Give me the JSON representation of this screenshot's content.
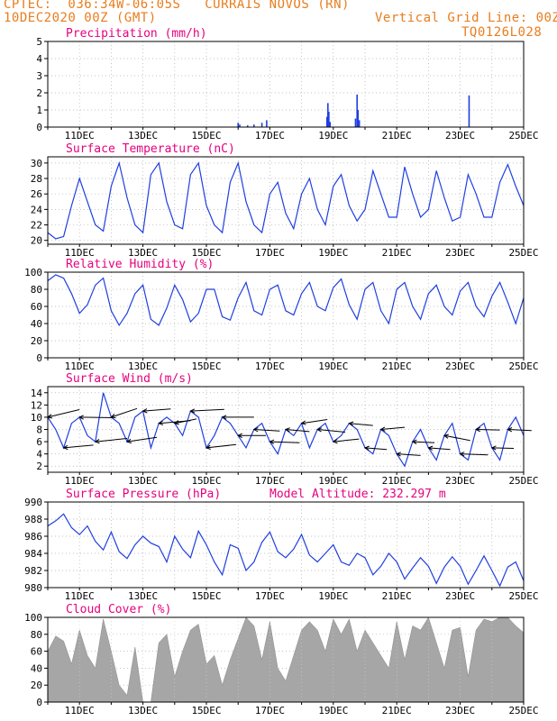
{
  "header": {
    "line1": "CPTEC:  036:34W-06:05S   CURRAIS NOVOS (RN)",
    "line2": "10DEC2020 00Z (GMT)",
    "grid_note": "Vertical Grid Line: 00Z",
    "code": "TQ0126L028"
  },
  "colors": {
    "header": "#e87d1e",
    "title": "#e6007e",
    "line": "#1f3fe0",
    "bar": "#1f3fe0",
    "cloud": "#a6a6a6",
    "arrow": "#000000"
  },
  "chart_data": [
    {
      "type": "bar",
      "title": "Precipitation (mm/h)",
      "x_tick_labels": [
        "11DEC",
        "13DEC",
        "15DEC",
        "17DEC",
        "19DEC",
        "21DEC",
        "23DEC",
        "25DEC"
      ],
      "x_range_days": [
        10,
        25
      ],
      "ylim": [
        0,
        5
      ],
      "yticks": [
        0,
        1,
        2,
        3,
        4,
        5
      ],
      "grid": true,
      "values": [
        {
          "day": 16.0,
          "v": 0.25
        },
        {
          "day": 16.05,
          "v": 0.15
        },
        {
          "day": 16.3,
          "v": 0.1
        },
        {
          "day": 16.5,
          "v": 0.15
        },
        {
          "day": 16.75,
          "v": 0.25
        },
        {
          "day": 16.9,
          "v": 0.4
        },
        {
          "day": 18.8,
          "v": 0.6
        },
        {
          "day": 18.83,
          "v": 1.4
        },
        {
          "day": 18.86,
          "v": 0.9
        },
        {
          "day": 18.9,
          "v": 0.3
        },
        {
          "day": 19.7,
          "v": 0.5
        },
        {
          "day": 19.75,
          "v": 1.9
        },
        {
          "day": 19.78,
          "v": 1.0
        },
        {
          "day": 19.82,
          "v": 0.4
        },
        {
          "day": 23.28,
          "v": 1.85
        }
      ]
    },
    {
      "type": "line",
      "title": "Surface Temperature (nC)",
      "x_tick_labels": [
        "11DEC",
        "13DEC",
        "15DEC",
        "17DEC",
        "19DEC",
        "21DEC",
        "23DEC",
        "25DEC"
      ],
      "ylim": [
        19.5,
        30.8
      ],
      "yticks": [
        20,
        22,
        24,
        26,
        28,
        30
      ],
      "grid": true,
      "x": [
        10.0,
        10.25,
        10.5,
        10.75,
        11.0,
        11.25,
        11.5,
        11.75,
        12.0,
        12.25,
        12.5,
        12.75,
        13.0,
        13.25,
        13.5,
        13.75,
        14.0,
        14.25,
        14.5,
        14.75,
        15.0,
        15.25,
        15.5,
        15.75,
        16.0,
        16.25,
        16.5,
        16.75,
        17.0,
        17.25,
        17.5,
        17.75,
        18.0,
        18.25,
        18.5,
        18.75,
        19.0,
        19.25,
        19.5,
        19.75,
        20.0,
        20.25,
        20.5,
        20.75,
        21.0,
        21.25,
        21.5,
        21.75,
        22.0,
        22.25,
        22.5,
        22.75,
        23.0,
        23.25,
        23.5,
        23.75,
        24.0,
        24.25,
        24.5,
        24.75,
        25.0
      ],
      "y": [
        21.0,
        20.2,
        20.5,
        24.5,
        28.0,
        25.0,
        22.0,
        21.2,
        27.0,
        30.0,
        25.5,
        22.0,
        21.0,
        28.5,
        30.0,
        25.0,
        22.0,
        21.5,
        28.5,
        30.0,
        24.5,
        22.0,
        21.0,
        27.5,
        30.0,
        25.0,
        22.0,
        21.0,
        26.0,
        27.5,
        23.5,
        21.5,
        26.0,
        28.0,
        24.0,
        22.0,
        27.0,
        28.5,
        24.5,
        22.5,
        24.0,
        29.0,
        26.0,
        23.0,
        23.0,
        29.5,
        26.0,
        23.0,
        24.0,
        29.0,
        25.5,
        22.5,
        23.0,
        28.5,
        26.0,
        23.0,
        23.0,
        27.5,
        29.8,
        27.0,
        24.5
      ]
    },
    {
      "type": "line",
      "title": "Relative Humidity (%)",
      "x_tick_labels": [
        "11DEC",
        "13DEC",
        "15DEC",
        "17DEC",
        "19DEC",
        "21DEC",
        "23DEC",
        "25DEC"
      ],
      "ylim": [
        0,
        100
      ],
      "yticks": [
        0,
        20,
        40,
        60,
        80,
        100
      ],
      "grid": true,
      "x": [
        10.0,
        10.25,
        10.5,
        10.75,
        11.0,
        11.25,
        11.5,
        11.75,
        12.0,
        12.25,
        12.5,
        12.75,
        13.0,
        13.25,
        13.5,
        13.75,
        14.0,
        14.25,
        14.5,
        14.75,
        15.0,
        15.25,
        15.5,
        15.75,
        16.0,
        16.25,
        16.5,
        16.75,
        17.0,
        17.25,
        17.5,
        17.75,
        18.0,
        18.25,
        18.5,
        18.75,
        19.0,
        19.25,
        19.5,
        19.75,
        20.0,
        20.25,
        20.5,
        20.75,
        21.0,
        21.25,
        21.5,
        21.75,
        22.0,
        22.25,
        22.5,
        22.75,
        23.0,
        23.25,
        23.5,
        23.75,
        24.0,
        24.25,
        24.5,
        24.75,
        25.0
      ],
      "y": [
        90,
        97,
        93,
        75,
        52,
        62,
        85,
        93,
        55,
        38,
        52,
        75,
        85,
        45,
        38,
        58,
        85,
        68,
        42,
        52,
        80,
        80,
        48,
        44,
        70,
        88,
        55,
        50,
        80,
        85,
        55,
        50,
        75,
        88,
        60,
        55,
        82,
        92,
        62,
        45,
        80,
        88,
        55,
        40,
        80,
        88,
        60,
        45,
        75,
        85,
        60,
        50,
        78,
        88,
        60,
        48,
        72,
        88,
        65,
        40,
        70
      ]
    },
    {
      "type": "line",
      "title": "Surface Wind (m/s)",
      "x_tick_labels": [
        "11DEC",
        "13DEC",
        "15DEC",
        "17DEC",
        "19DEC",
        "21DEC",
        "23DEC",
        "25DEC"
      ],
      "ylim": [
        1,
        15
      ],
      "yticks": [
        2,
        4,
        6,
        8,
        10,
        12,
        14
      ],
      "grid": true,
      "x": [
        10.0,
        10.25,
        10.5,
        10.75,
        11.0,
        11.25,
        11.5,
        11.75,
        12.0,
        12.25,
        12.5,
        12.75,
        13.0,
        13.25,
        13.5,
        13.75,
        14.0,
        14.25,
        14.5,
        14.75,
        15.0,
        15.25,
        15.5,
        15.75,
        16.0,
        16.25,
        16.5,
        16.75,
        17.0,
        17.25,
        17.5,
        17.75,
        18.0,
        18.25,
        18.5,
        18.75,
        19.0,
        19.25,
        19.5,
        19.75,
        20.0,
        20.25,
        20.5,
        20.75,
        21.0,
        21.25,
        21.5,
        21.75,
        22.0,
        22.25,
        22.5,
        22.75,
        23.0,
        23.25,
        23.5,
        23.75,
        24.0,
        24.25,
        24.5,
        24.75,
        25.0
      ],
      "y": [
        10,
        8,
        5,
        9,
        10,
        7,
        6,
        14,
        10,
        9,
        6,
        10,
        11,
        5,
        9,
        10,
        9,
        7,
        11,
        10,
        5,
        7,
        10,
        9,
        7,
        5,
        8,
        9,
        6,
        4,
        8,
        7,
        9,
        5,
        8,
        9,
        6,
        7,
        9,
        8,
        5,
        4,
        8,
        7,
        4,
        2,
        6,
        8,
        5,
        3,
        7,
        9,
        4,
        3,
        8,
        9,
        5,
        3,
        8,
        10,
        7
      ],
      "wind_arrows": [
        {
          "day": 10.0,
          "u": 1.6,
          "v": -1.4
        },
        {
          "day": 10.5,
          "u": 1.5,
          "v": -0.5
        },
        {
          "day": 11.0,
          "u": 1.7,
          "v": 0.1
        },
        {
          "day": 11.5,
          "u": 1.6,
          "v": -0.6
        },
        {
          "day": 12.0,
          "u": 1.3,
          "v": -1.6
        },
        {
          "day": 12.5,
          "u": 1.5,
          "v": -0.8
        },
        {
          "day": 13.0,
          "u": 1.4,
          "v": -0.4
        },
        {
          "day": 13.5,
          "u": 1.6,
          "v": -0.5
        },
        {
          "day": 14.0,
          "u": 1.1,
          "v": -0.8
        },
        {
          "day": 14.5,
          "u": 1.7,
          "v": -0.3
        },
        {
          "day": 15.0,
          "u": 1.5,
          "v": -0.6
        },
        {
          "day": 15.5,
          "u": 1.6,
          "v": 0.0
        },
        {
          "day": 16.0,
          "u": 1.4,
          "v": 0.0
        },
        {
          "day": 16.5,
          "u": 1.3,
          "v": 0.3
        },
        {
          "day": 17.0,
          "u": 1.5,
          "v": 0.2
        },
        {
          "day": 17.5,
          "u": 1.2,
          "v": 0.4
        },
        {
          "day": 18.0,
          "u": 1.3,
          "v": -0.7
        },
        {
          "day": 18.5,
          "u": 1.4,
          "v": 0.5
        },
        {
          "day": 19.0,
          "u": 1.3,
          "v": -0.5
        },
        {
          "day": 19.5,
          "u": 1.2,
          "v": 0.4
        },
        {
          "day": 20.0,
          "u": 1.1,
          "v": 0.3
        },
        {
          "day": 20.5,
          "u": 1.2,
          "v": -0.4
        },
        {
          "day": 21.0,
          "u": 1.2,
          "v": 0.3
        },
        {
          "day": 21.5,
          "u": 1.1,
          "v": 0.2
        },
        {
          "day": 22.0,
          "u": 1.1,
          "v": 0.3
        },
        {
          "day": 22.5,
          "u": 1.3,
          "v": 0.9
        },
        {
          "day": 23.0,
          "u": 1.4,
          "v": 0.2
        },
        {
          "day": 23.5,
          "u": 1.2,
          "v": 0.1
        },
        {
          "day": 24.0,
          "u": 1.1,
          "v": 0.1
        },
        {
          "day": 24.5,
          "u": 1.2,
          "v": 0.2
        }
      ]
    },
    {
      "type": "line",
      "title": "Surface Pressure (hPa)",
      "annotation": "Model Altitude: 232.297 m",
      "x_tick_labels": [
        "11DEC",
        "13DEC",
        "15DEC",
        "17DEC",
        "19DEC",
        "21DEC",
        "23DEC",
        "25DEC"
      ],
      "ylim": [
        980,
        990
      ],
      "yticks": [
        980,
        982,
        984,
        986,
        988,
        990
      ],
      "grid": true,
      "x": [
        10.0,
        10.25,
        10.5,
        10.75,
        11.0,
        11.25,
        11.5,
        11.75,
        12.0,
        12.25,
        12.5,
        12.75,
        13.0,
        13.25,
        13.5,
        13.75,
        14.0,
        14.25,
        14.5,
        14.75,
        15.0,
        15.25,
        15.5,
        15.75,
        16.0,
        16.25,
        16.5,
        16.75,
        17.0,
        17.25,
        17.5,
        17.75,
        18.0,
        18.25,
        18.5,
        18.75,
        19.0,
        19.25,
        19.5,
        19.75,
        20.0,
        20.25,
        20.5,
        20.75,
        21.0,
        21.25,
        21.5,
        21.75,
        22.0,
        22.25,
        22.5,
        22.75,
        23.0,
        23.25,
        23.5,
        23.75,
        24.0,
        24.25,
        24.5,
        24.75,
        25.0
      ],
      "y": [
        987.2,
        987.8,
        988.6,
        987.0,
        986.2,
        987.2,
        985.4,
        984.4,
        986.5,
        984.2,
        983.4,
        985.0,
        986.0,
        985.2,
        984.8,
        983.0,
        986.0,
        984.5,
        983.5,
        986.6,
        985.0,
        983.0,
        981.5,
        985.0,
        984.6,
        982.0,
        983.0,
        985.3,
        986.5,
        984.2,
        983.5,
        984.5,
        986.2,
        983.8,
        983.0,
        984.0,
        985.0,
        983.0,
        982.6,
        984.0,
        983.5,
        981.5,
        982.5,
        984.0,
        983.0,
        981.0,
        982.3,
        983.5,
        982.5,
        980.5,
        982.4,
        983.6,
        982.5,
        980.4,
        982.0,
        983.7,
        982.0,
        980.2,
        982.4,
        983.0,
        980.8
      ]
    },
    {
      "type": "area",
      "title": "Cloud Cover (%)",
      "x_tick_labels": [
        "11DEC",
        "13DEC",
        "15DEC",
        "17DEC",
        "19DEC",
        "21DEC",
        "23DEC",
        "25DEC"
      ],
      "ylim": [
        0,
        100
      ],
      "yticks": [
        0,
        20,
        40,
        60,
        80,
        100
      ],
      "grid": true,
      "x": [
        10.0,
        10.25,
        10.5,
        10.75,
        11.0,
        11.25,
        11.5,
        11.75,
        12.0,
        12.25,
        12.5,
        12.75,
        13.0,
        13.25,
        13.5,
        13.75,
        14.0,
        14.25,
        14.5,
        14.75,
        15.0,
        15.25,
        15.5,
        15.75,
        16.0,
        16.25,
        16.5,
        16.75,
        17.0,
        17.25,
        17.5,
        17.75,
        18.0,
        18.25,
        18.5,
        18.75,
        19.0,
        19.25,
        19.5,
        19.75,
        20.0,
        20.25,
        20.5,
        20.75,
        21.0,
        21.25,
        21.5,
        21.75,
        22.0,
        22.25,
        22.5,
        22.75,
        23.0,
        23.25,
        23.5,
        23.75,
        24.0,
        24.25,
        24.5,
        24.75,
        25.0
      ],
      "y": [
        60,
        78,
        72,
        45,
        85,
        55,
        40,
        98,
        60,
        20,
        8,
        65,
        0,
        0,
        70,
        80,
        30,
        60,
        85,
        92,
        45,
        55,
        20,
        50,
        75,
        100,
        90,
        50,
        95,
        40,
        25,
        55,
        85,
        95,
        85,
        60,
        98,
        80,
        98,
        60,
        85,
        70,
        55,
        40,
        95,
        50,
        90,
        85,
        100,
        70,
        40,
        85,
        88,
        30,
        85,
        98,
        95,
        100,
        100,
        90,
        82
      ]
    }
  ]
}
